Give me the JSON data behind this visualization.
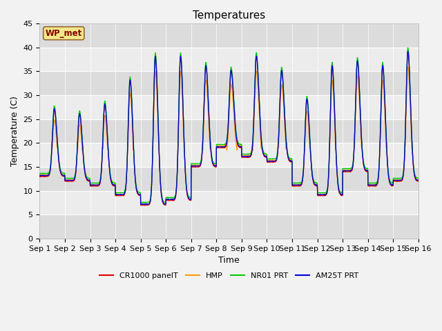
{
  "title": "Temperatures",
  "ylabel": "Temperature (C)",
  "xlabel": "Time",
  "ylim": [
    0,
    45
  ],
  "yticks": [
    0,
    5,
    10,
    15,
    20,
    25,
    30,
    35,
    40,
    45
  ],
  "xtick_labels": [
    "Sep 1",
    "Sep 2",
    "Sep 3",
    "Sep 4",
    "Sep 5",
    "Sep 6",
    "Sep 7",
    "Sep 8",
    "Sep 9",
    "Sep 10",
    "Sep 11",
    "Sep 12",
    "Sep 13",
    "Sep 14",
    "Sep 15",
    "Sep 16"
  ],
  "site_label": "WP_met",
  "colors": {
    "CR1000 panelT": "#dd0000",
    "HMP": "#ff9900",
    "NR01 PRT": "#00cc00",
    "AM25T PRT": "#0000dd"
  },
  "legend_labels": [
    "CR1000 panelT",
    "HMP",
    "NR01 PRT",
    "AM25T PRT"
  ],
  "plot_bg": "#e8e8e8",
  "band_colors": [
    "#dcdcdc",
    "#ececec"
  ],
  "title_fontsize": 11,
  "label_fontsize": 9,
  "tick_fontsize": 8
}
